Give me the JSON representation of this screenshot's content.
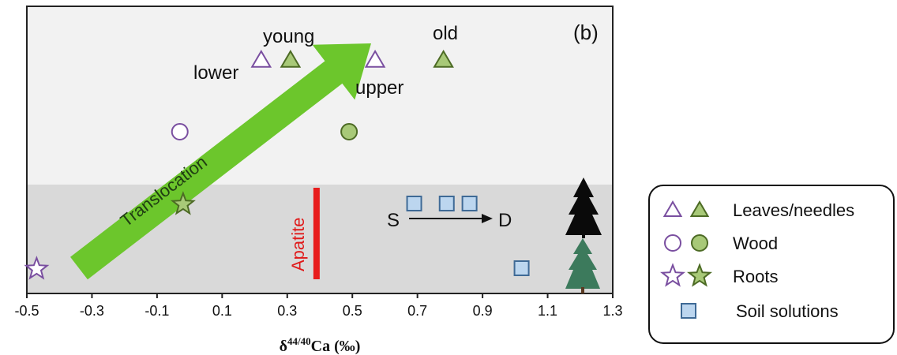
{
  "chart_data": {
    "type": "scatter",
    "panel_label": "(b)",
    "xlabel_main": "δ",
    "xlabel_sup": "44/40",
    "xlabel_tail": "Ca (‰)",
    "xlim": [
      -0.5,
      1.3
    ],
    "x_ticks": [
      "-0.5",
      "-0.3",
      "-0.1",
      "0.1",
      "0.3",
      "0.5",
      "0.7",
      "0.9",
      "1.1",
      "1.3"
    ],
    "grid": false,
    "zones": [
      {
        "name": "above-ground",
        "color": "#f2f2f2"
      },
      {
        "name": "below-ground",
        "color": "#d9d9d9"
      }
    ],
    "series": [
      {
        "name": "Leaves/needles",
        "marker": "triangle",
        "points": [
          {
            "x": 0.22,
            "level": "leaves",
            "fill": "open"
          },
          {
            "x": 0.31,
            "level": "leaves",
            "fill": "filled"
          },
          {
            "x": 0.57,
            "level": "leaves",
            "fill": "open"
          },
          {
            "x": 0.78,
            "level": "leaves",
            "fill": "filled"
          }
        ]
      },
      {
        "name": "Wood",
        "marker": "circle",
        "points": [
          {
            "x": -0.03,
            "level": "wood",
            "fill": "open"
          },
          {
            "x": 0.49,
            "level": "wood",
            "fill": "filled"
          }
        ]
      },
      {
        "name": "Roots",
        "marker": "star",
        "points": [
          {
            "x": -0.47,
            "level": "roots_low",
            "fill": "open"
          },
          {
            "x": -0.02,
            "level": "roots_high",
            "fill": "filled"
          }
        ]
      },
      {
        "name": "Soil solutions",
        "marker": "square",
        "points": [
          {
            "x": 0.69,
            "level": "soil_high"
          },
          {
            "x": 0.79,
            "level": "soil_high"
          },
          {
            "x": 0.86,
            "level": "soil_high"
          },
          {
            "x": 1.02,
            "level": "soil_low"
          }
        ]
      }
    ],
    "annotations": {
      "young": "young",
      "old": "old",
      "lower": "lower",
      "upper": "upper",
      "translocation": "Translocation",
      "apatite": "Apatite",
      "apatite_x": 0.39,
      "s": "S",
      "d": "D"
    },
    "legend": {
      "placement": "right",
      "entries": [
        {
          "label": "Leaves/needles",
          "marker": "triangle",
          "pair": true
        },
        {
          "label": "Wood",
          "marker": "circle",
          "pair": true
        },
        {
          "label": "Roots",
          "marker": "star",
          "pair": true
        },
        {
          "label": "Soil solutions",
          "marker": "square",
          "pair": false
        }
      ]
    },
    "colors": {
      "open_stroke": "#7a4fa0",
      "filled_fill": "#a8c978",
      "filled_stroke": "#4d6b25",
      "square_fill": "#bcd6ef",
      "square_stroke": "#3f6a96",
      "arrow": "#6cc62c",
      "apatite": "#e81c1c",
      "tree_dark": "#0a0a0a",
      "tree_green": "#3c7a5c"
    }
  }
}
